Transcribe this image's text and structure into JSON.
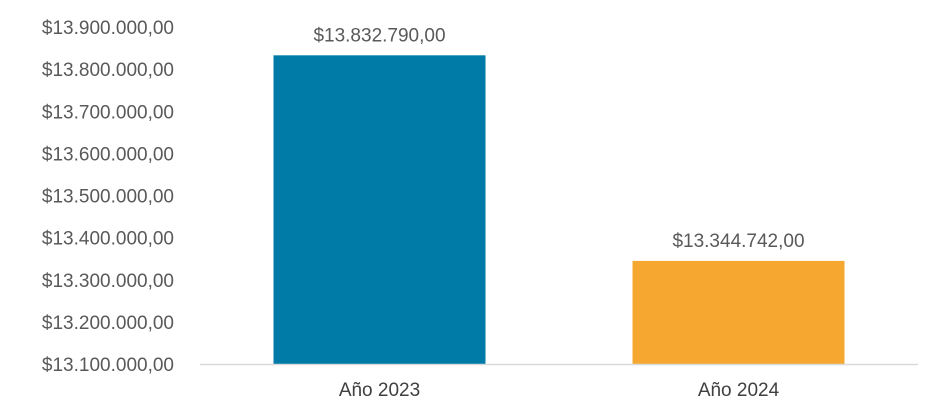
{
  "chart_data": {
    "type": "bar",
    "title": "",
    "xlabel": "",
    "ylabel": "",
    "categories": [
      "Año 2023",
      "Año 2024"
    ],
    "values": [
      13832790,
      13344742
    ],
    "data_labels": [
      "$13.832.790,00",
      "$13.344.742,00"
    ],
    "bar_colors": [
      "#007BA7",
      "#F5A72F"
    ],
    "ylim": [
      13100000,
      13900000
    ],
    "y_ticks": [
      13100000,
      13200000,
      13300000,
      13400000,
      13500000,
      13600000,
      13700000,
      13800000,
      13900000
    ],
    "y_tick_labels": [
      "$13.100.000,00",
      "$13.200.000,00",
      "$13.300.000,00",
      "$13.400.000,00",
      "$13.500.000,00",
      "$13.600.000,00",
      "$13.700.000,00",
      "$13.800.000,00",
      "$13.900.000,00"
    ],
    "grid": false,
    "legend": "none",
    "axis_color": "#D9D9D9"
  }
}
